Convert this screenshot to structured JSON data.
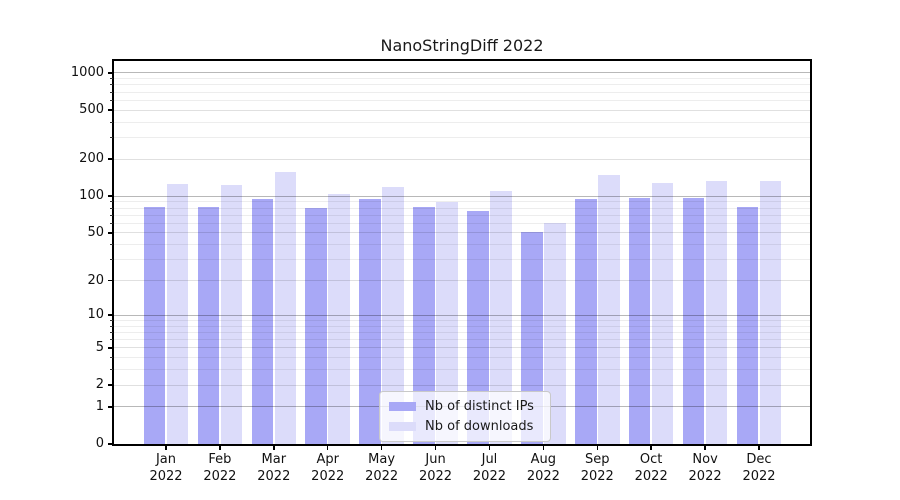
{
  "chart_data": {
    "type": "bar",
    "title": "NanoStringDiff 2022",
    "months": [
      "Jan",
      "Feb",
      "Mar",
      "Apr",
      "May",
      "Jun",
      "Jul",
      "Aug",
      "Sep",
      "Oct",
      "Nov",
      "Dec"
    ],
    "year": "2022",
    "categories": [
      "Jan 2022",
      "Feb 2022",
      "Mar 2022",
      "Apr 2022",
      "May 2022",
      "Jun 2022",
      "Jul 2022",
      "Aug 2022",
      "Sep 2022",
      "Oct 2022",
      "Nov 2022",
      "Dec 2022"
    ],
    "series": [
      {
        "name": "Nb of distinct IPs",
        "color": "#a8a8f6",
        "values": [
          82,
          82,
          94,
          80,
          95,
          81,
          75,
          51,
          95,
          97,
          96,
          81
        ]
      },
      {
        "name": "Nb of downloads",
        "color": "#dcdcfa",
        "values": [
          126,
          123,
          157,
          105,
          119,
          90,
          110,
          60,
          149,
          128,
          133,
          133
        ]
      }
    ],
    "yscale": "log1p",
    "y_ticks": [
      0,
      1,
      2,
      5,
      10,
      20,
      50,
      100,
      200,
      500,
      1000
    ],
    "y_minor_ticks": [
      3,
      4,
      6,
      7,
      8,
      9,
      30,
      40,
      60,
      70,
      80,
      90,
      300,
      400,
      600,
      700,
      800,
      900
    ],
    "ylim": [
      0,
      1250
    ],
    "grid": true,
    "legend_position": "lower-center-inside"
  },
  "colors": {
    "bar_distinct_ips": "#a8a8f6",
    "bar_downloads": "#dcdcfa",
    "grid_power10": "rgba(0,0,0,0.28)",
    "grid_labeled": "rgba(0,0,0,0.12)",
    "grid_minor": "rgba(0,0,0,0.07)",
    "axis_frame": "#000000",
    "background": "#ffffff",
    "legend_border": "#c9c9c9"
  }
}
